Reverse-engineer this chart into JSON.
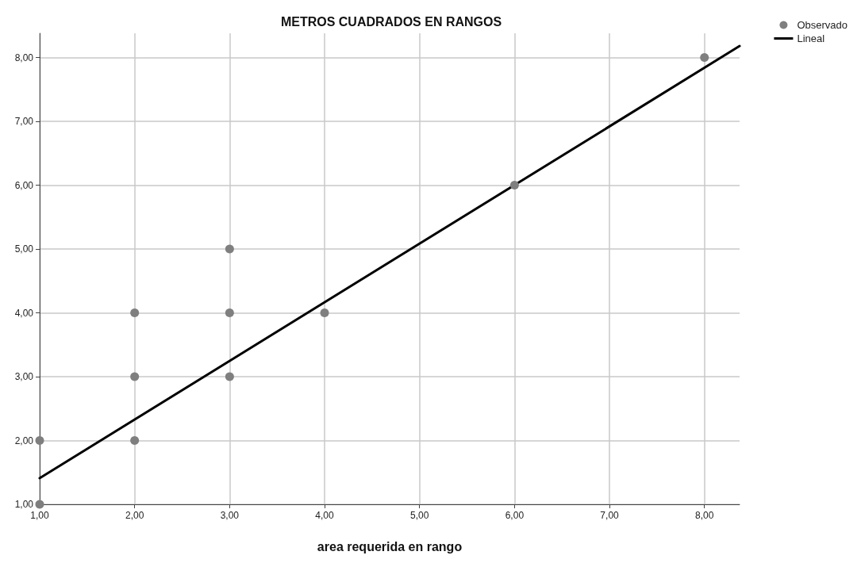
{
  "chart_data": {
    "type": "scatter",
    "title": "METROS CUADRADOS EN RANGOS",
    "xlabel": "area requerida en rango",
    "xlim": [
      1,
      8.37
    ],
    "ylim": [
      1,
      8.38
    ],
    "xticks": [
      {
        "value": 1,
        "label": "1,00"
      },
      {
        "value": 2,
        "label": "2,00"
      },
      {
        "value": 3,
        "label": "3,00"
      },
      {
        "value": 4,
        "label": "4,00"
      },
      {
        "value": 5,
        "label": "5,00"
      },
      {
        "value": 6,
        "label": "6,00"
      },
      {
        "value": 7,
        "label": "7,00"
      },
      {
        "value": 8,
        "label": "8,00"
      }
    ],
    "yticks": [
      {
        "value": 1,
        "label": "1,00"
      },
      {
        "value": 2,
        "label": "2,00"
      },
      {
        "value": 3,
        "label": "3,00"
      },
      {
        "value": 4,
        "label": "4,00"
      },
      {
        "value": 5,
        "label": "5,00"
      },
      {
        "value": 6,
        "label": "6,00"
      },
      {
        "value": 7,
        "label": "7,00"
      },
      {
        "value": 8,
        "label": "8,00"
      }
    ],
    "grid": true,
    "legend": "top right",
    "series": [
      {
        "name": "Observado",
        "marker": "circle",
        "color": "#7f7f7f",
        "x": [
          1,
          1,
          2,
          2,
          2,
          3,
          3,
          3,
          4,
          6,
          8
        ],
        "values": [
          1,
          2,
          2,
          3,
          4,
          3,
          4,
          5,
          4,
          6,
          8
        ]
      },
      {
        "name": "Lineal",
        "type": "line",
        "marker": "none",
        "line_style": "solid",
        "color": "#000000",
        "x": [
          1,
          8.37
        ],
        "values": [
          1.41,
          8.18
        ]
      }
    ]
  }
}
